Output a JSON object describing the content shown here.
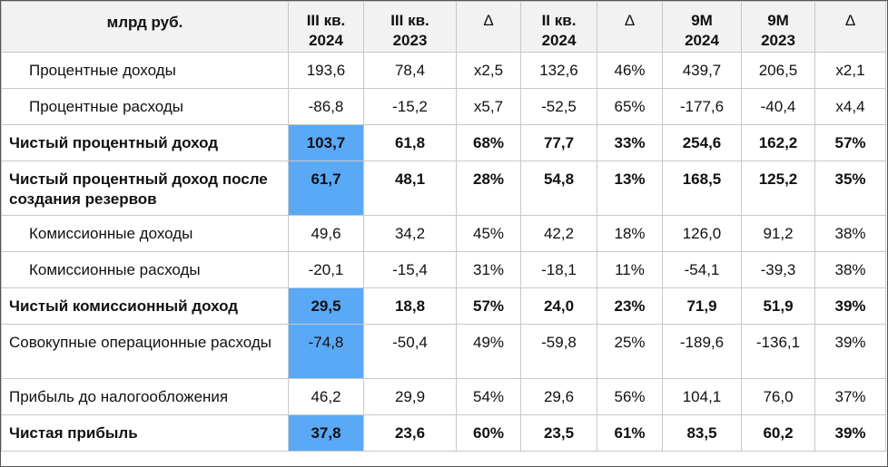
{
  "table": {
    "headers": [
      "млрд руб.",
      "III кв.\n2024",
      "III кв.\n2023",
      "Δ",
      "II кв.\n2024",
      "Δ",
      "9М\n2024",
      "9М\n2023",
      "Δ"
    ],
    "rows": [
      {
        "label": "Процентные доходы",
        "values": [
          "193,6",
          "78,4",
          "x2,5",
          "132,6",
          "46%",
          "439,7",
          "206,5",
          "x2,1"
        ]
      },
      {
        "label": "Процентные расходы",
        "values": [
          "-86,8",
          "-15,2",
          "x5,7",
          "-52,5",
          "65%",
          "-177,6",
          "-40,4",
          "x4,4"
        ]
      },
      {
        "label": "Чистый процентный доход",
        "values": [
          "103,7",
          "61,8",
          "68%",
          "77,7",
          "33%",
          "254,6",
          "162,2",
          "57%"
        ]
      },
      {
        "label": "Чистый процентный доход после создания резервов",
        "values": [
          "61,7",
          "48,1",
          "28%",
          "54,8",
          "13%",
          "168,5",
          "125,2",
          "35%"
        ]
      },
      {
        "label": "Комиссионные доходы",
        "values": [
          "49,6",
          "34,2",
          "45%",
          "42,2",
          "18%",
          "126,0",
          "91,2",
          "38%"
        ]
      },
      {
        "label": "Комиссионные расходы",
        "values": [
          "-20,1",
          "-15,4",
          "31%",
          "-18,1",
          "11%",
          "-54,1",
          "-39,3",
          "38%"
        ]
      },
      {
        "label": "Чистый комиссионный доход",
        "values": [
          "29,5",
          "18,8",
          "57%",
          "24,0",
          "23%",
          "71,9",
          "51,9",
          "39%"
        ]
      },
      {
        "label": "Совокупные операционные расходы",
        "values": [
          "-74,8",
          "-50,4",
          "49%",
          "-59,8",
          "25%",
          "-189,6",
          "-136,1",
          "39%"
        ]
      },
      {
        "label": "Прибыль до налогообложения",
        "values": [
          "46,2",
          "29,9",
          "54%",
          "29,6",
          "56%",
          "104,1",
          "76,0",
          "37%"
        ]
      },
      {
        "label": "Чистая прибыль",
        "values": [
          "37,8",
          "23,6",
          "60%",
          "23,5",
          "61%",
          "83,5",
          "60,2",
          "39%"
        ]
      }
    ]
  },
  "colors": {
    "highlight": "#5aa9f7",
    "header_bg": "#f2f2f2",
    "grid": "#c8c8c8"
  }
}
